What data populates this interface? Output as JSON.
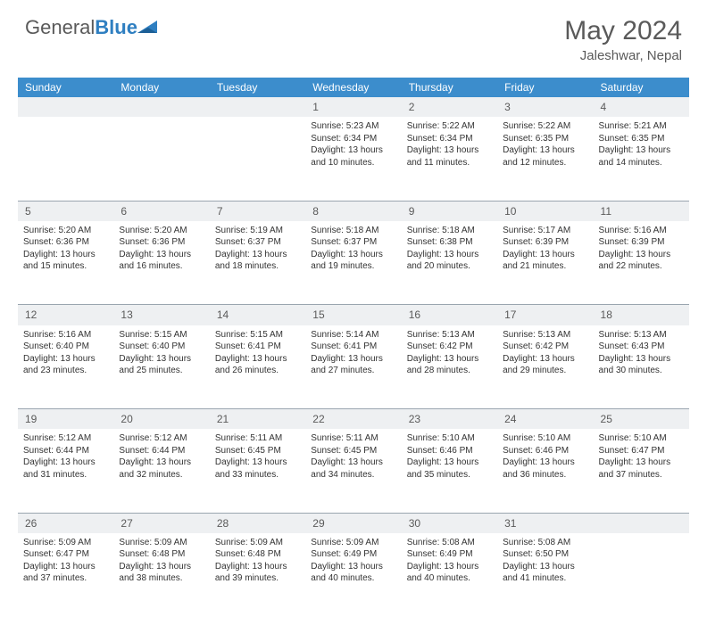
{
  "logo": {
    "general": "General",
    "blue": "Blue"
  },
  "title": "May 2024",
  "location": "Jaleshwar, Nepal",
  "colors": {
    "header_bg": "#3c8dcc",
    "header_text": "#ffffff",
    "daynum_bg": "#eef0f2",
    "text": "#333333",
    "muted": "#5a5a5a",
    "rule": "#9aa5af",
    "page_bg": "#ffffff",
    "logo_blue": "#2f7fc1"
  },
  "days": [
    "Sunday",
    "Monday",
    "Tuesday",
    "Wednesday",
    "Thursday",
    "Friday",
    "Saturday"
  ],
  "weeks": [
    {
      "nums": [
        "",
        "",
        "",
        "1",
        "2",
        "3",
        "4"
      ],
      "cells": [
        "",
        "",
        "",
        "Sunrise: 5:23 AM\nSunset: 6:34 PM\nDaylight: 13 hours and 10 minutes.",
        "Sunrise: 5:22 AM\nSunset: 6:34 PM\nDaylight: 13 hours and 11 minutes.",
        "Sunrise: 5:22 AM\nSunset: 6:35 PM\nDaylight: 13 hours and 12 minutes.",
        "Sunrise: 5:21 AM\nSunset: 6:35 PM\nDaylight: 13 hours and 14 minutes."
      ]
    },
    {
      "nums": [
        "5",
        "6",
        "7",
        "8",
        "9",
        "10",
        "11"
      ],
      "cells": [
        "Sunrise: 5:20 AM\nSunset: 6:36 PM\nDaylight: 13 hours and 15 minutes.",
        "Sunrise: 5:20 AM\nSunset: 6:36 PM\nDaylight: 13 hours and 16 minutes.",
        "Sunrise: 5:19 AM\nSunset: 6:37 PM\nDaylight: 13 hours and 18 minutes.",
        "Sunrise: 5:18 AM\nSunset: 6:37 PM\nDaylight: 13 hours and 19 minutes.",
        "Sunrise: 5:18 AM\nSunset: 6:38 PM\nDaylight: 13 hours and 20 minutes.",
        "Sunrise: 5:17 AM\nSunset: 6:39 PM\nDaylight: 13 hours and 21 minutes.",
        "Sunrise: 5:16 AM\nSunset: 6:39 PM\nDaylight: 13 hours and 22 minutes."
      ]
    },
    {
      "nums": [
        "12",
        "13",
        "14",
        "15",
        "16",
        "17",
        "18"
      ],
      "cells": [
        "Sunrise: 5:16 AM\nSunset: 6:40 PM\nDaylight: 13 hours and 23 minutes.",
        "Sunrise: 5:15 AM\nSunset: 6:40 PM\nDaylight: 13 hours and 25 minutes.",
        "Sunrise: 5:15 AM\nSunset: 6:41 PM\nDaylight: 13 hours and 26 minutes.",
        "Sunrise: 5:14 AM\nSunset: 6:41 PM\nDaylight: 13 hours and 27 minutes.",
        "Sunrise: 5:13 AM\nSunset: 6:42 PM\nDaylight: 13 hours and 28 minutes.",
        "Sunrise: 5:13 AM\nSunset: 6:42 PM\nDaylight: 13 hours and 29 minutes.",
        "Sunrise: 5:13 AM\nSunset: 6:43 PM\nDaylight: 13 hours and 30 minutes."
      ]
    },
    {
      "nums": [
        "19",
        "20",
        "21",
        "22",
        "23",
        "24",
        "25"
      ],
      "cells": [
        "Sunrise: 5:12 AM\nSunset: 6:44 PM\nDaylight: 13 hours and 31 minutes.",
        "Sunrise: 5:12 AM\nSunset: 6:44 PM\nDaylight: 13 hours and 32 minutes.",
        "Sunrise: 5:11 AM\nSunset: 6:45 PM\nDaylight: 13 hours and 33 minutes.",
        "Sunrise: 5:11 AM\nSunset: 6:45 PM\nDaylight: 13 hours and 34 minutes.",
        "Sunrise: 5:10 AM\nSunset: 6:46 PM\nDaylight: 13 hours and 35 minutes.",
        "Sunrise: 5:10 AM\nSunset: 6:46 PM\nDaylight: 13 hours and 36 minutes.",
        "Sunrise: 5:10 AM\nSunset: 6:47 PM\nDaylight: 13 hours and 37 minutes."
      ]
    },
    {
      "nums": [
        "26",
        "27",
        "28",
        "29",
        "30",
        "31",
        ""
      ],
      "cells": [
        "Sunrise: 5:09 AM\nSunset: 6:47 PM\nDaylight: 13 hours and 37 minutes.",
        "Sunrise: 5:09 AM\nSunset: 6:48 PM\nDaylight: 13 hours and 38 minutes.",
        "Sunrise: 5:09 AM\nSunset: 6:48 PM\nDaylight: 13 hours and 39 minutes.",
        "Sunrise: 5:09 AM\nSunset: 6:49 PM\nDaylight: 13 hours and 40 minutes.",
        "Sunrise: 5:08 AM\nSunset: 6:49 PM\nDaylight: 13 hours and 40 minutes.",
        "Sunrise: 5:08 AM\nSunset: 6:50 PM\nDaylight: 13 hours and 41 minutes.",
        ""
      ]
    }
  ]
}
